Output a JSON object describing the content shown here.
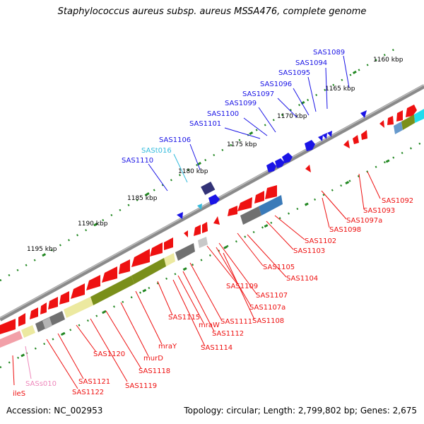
{
  "title": "Staphylococcus aureus subsp. aureus MSSA476, complete genome",
  "footer": {
    "accession": "Accession: NC_002953",
    "topology": "Topology: circular; Length: 2,799,802 bp; Genes: 2,675"
  },
  "colors": {
    "forward": "#1a14e6",
    "reverse": "#ee1111",
    "trna": "#33bbdd",
    "rrna": "#ee88bb",
    "olive": "#7a8f1a",
    "pale_yellow": "#ece9a0",
    "grey": "#707070",
    "steelblue": "#3a7ab8",
    "cyan": "#22ddee",
    "indigo": "#333377",
    "backbone": "#8a8a8a",
    "ruler": "#228822"
  },
  "kbp_labels": [
    "1160 kbp",
    "1165 kbp",
    "1170 kbp",
    "1175 kbp",
    "1180 kbp",
    "1185 kbp",
    "1190 kbp",
    "1195 kbp"
  ],
  "labels_top": [
    "SAS1089",
    "SAS1094",
    "SAS1095",
    "SAS1096",
    "SAS1097",
    "SAS1099",
    "SAS1100",
    "SAS1101",
    "SAS1106",
    "SASt016",
    "SAS1110"
  ],
  "labels_bottom": [
    "SAS1092",
    "SAS1093",
    "SAS1097a",
    "SAS1098",
    "SAS1102",
    "SAS1103",
    "SAS1104",
    "SAS1105",
    "SAS1107",
    "SAS1107a",
    "SAS1108",
    "SAS1109",
    "SAS1111",
    "SAS1112",
    "SAS1114",
    "mraW",
    "SAS1115",
    "mraY",
    "murD",
    "SAS1118",
    "SAS1119",
    "SAS1120",
    "SAS1121",
    "SAS1122",
    "SASs010",
    "ileS"
  ]
}
